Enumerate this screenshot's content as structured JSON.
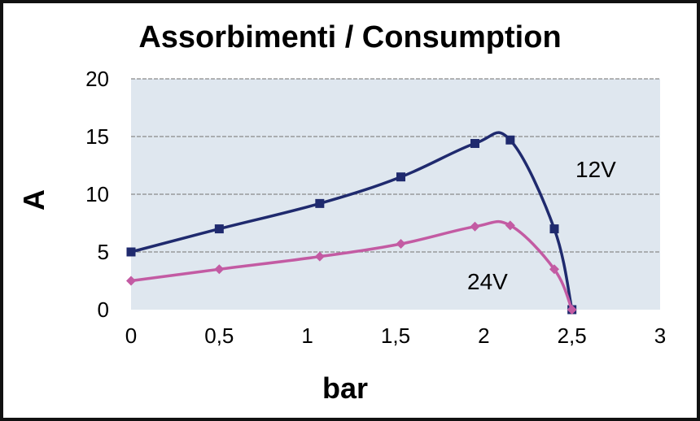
{
  "chart_data": {
    "type": "line",
    "title": "Assorbimenti / Consumption",
    "xlabel": "bar",
    "ylabel": "A",
    "xlim": [
      0,
      3
    ],
    "ylim": [
      0,
      20
    ],
    "x_ticks": [
      "0",
      "0,5",
      "1",
      "1,5",
      "2",
      "2,5",
      "3"
    ],
    "y_ticks": [
      "0",
      "5",
      "10",
      "15",
      "20"
    ],
    "grid": true,
    "series": [
      {
        "name": "12V",
        "marker": "square",
        "color": "#1f2a6e",
        "x": [
          0,
          0.5,
          1.07,
          1.53,
          1.95,
          2.15,
          2.4,
          2.5
        ],
        "y": [
          5.0,
          7.0,
          9.2,
          11.5,
          14.4,
          14.7,
          7.0,
          0.0
        ]
      },
      {
        "name": "24V",
        "marker": "diamond",
        "color": "#c35ba3",
        "x": [
          0,
          0.5,
          1.07,
          1.53,
          1.95,
          2.15,
          2.4,
          2.5
        ],
        "y": [
          2.5,
          3.5,
          4.6,
          5.7,
          7.2,
          7.3,
          3.5,
          0.0
        ]
      }
    ],
    "plot_background": "#dfe7ef",
    "grid_color": "#8a8a8a"
  }
}
